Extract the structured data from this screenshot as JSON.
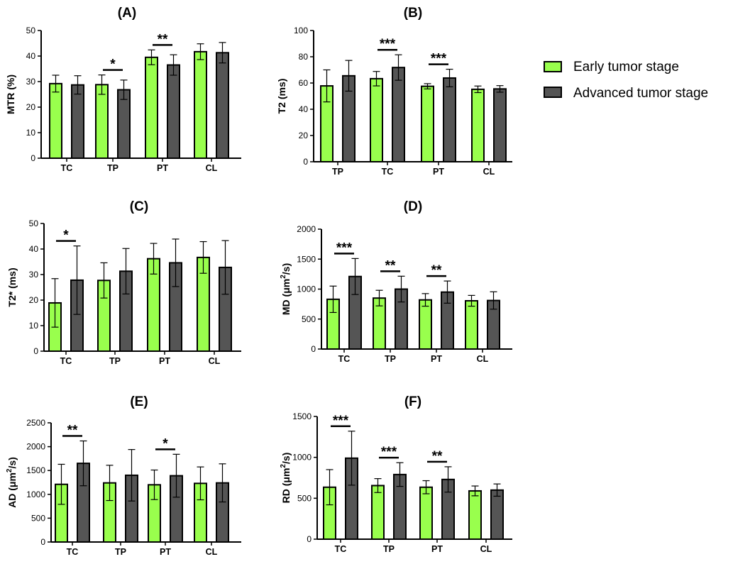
{
  "chart_data": [
    {
      "type": "bar",
      "title": "(A)",
      "ylabel": "MTR (%)",
      "ylabel_sup": "",
      "ylabel_tail": "",
      "ylim": [
        0,
        50
      ],
      "yticks": [
        0,
        10,
        20,
        30,
        40,
        50
      ],
      "categories": [
        "TC",
        "TP",
        "PT",
        "CL"
      ],
      "series": [
        {
          "name": "Early tumor stage",
          "values": [
            29.2,
            28.8,
            39.5,
            41.7
          ],
          "errors": [
            3.3,
            3.8,
            2.9,
            3.1
          ]
        },
        {
          "name": "Advanced tumor stage",
          "values": [
            28.7,
            26.8,
            36.5,
            41.3
          ],
          "errors": [
            3.6,
            3.8,
            4.0,
            4.0
          ]
        }
      ],
      "significance": [
        {
          "category": 1,
          "label": "*"
        },
        {
          "category": 2,
          "label": "**"
        }
      ]
    },
    {
      "type": "bar",
      "title": "(B)",
      "ylabel": "T2 (ms)",
      "ylabel_sup": "",
      "ylabel_tail": "",
      "ylim": [
        0,
        100
      ],
      "yticks": [
        0,
        20,
        40,
        60,
        80,
        100
      ],
      "categories": [
        "TP",
        "TC",
        "PT",
        "CL"
      ],
      "series": [
        {
          "name": "Early tumor stage",
          "values": [
            57.8,
            63.3,
            57.5,
            55.2
          ],
          "errors": [
            12.2,
            5.5,
            2.0,
            2.5
          ]
        },
        {
          "name": "Advanced tumor stage",
          "values": [
            65.5,
            71.8,
            63.8,
            55.5
          ],
          "errors": [
            11.7,
            9.7,
            6.7,
            2.5
          ]
        }
      ],
      "significance": [
        {
          "category": 1,
          "label": "***"
        },
        {
          "category": 2,
          "label": "***"
        }
      ]
    },
    {
      "type": "bar",
      "title": "(C)",
      "ylabel": "T2* (ms)",
      "ylabel_sup": "",
      "ylabel_tail": "",
      "ylim": [
        0,
        50
      ],
      "yticks": [
        0,
        10,
        20,
        30,
        40,
        50
      ],
      "categories": [
        "TC",
        "TP",
        "PT",
        "CL"
      ],
      "series": [
        {
          "name": "Early tumor stage",
          "values": [
            18.9,
            27.7,
            36.2,
            36.7
          ],
          "errors": [
            9.5,
            6.9,
            6.0,
            6.2
          ]
        },
        {
          "name": "Advanced tumor stage",
          "values": [
            27.8,
            31.3,
            34.6,
            32.8
          ],
          "errors": [
            13.4,
            8.9,
            9.3,
            10.5
          ]
        }
      ],
      "significance": [
        {
          "category": 0,
          "label": "*"
        }
      ]
    },
    {
      "type": "bar",
      "title": "(D)",
      "ylabel": "MD (μm",
      "ylabel_sup": "2",
      "ylabel_tail": "/s)",
      "ylim": [
        0,
        2000
      ],
      "yticks": [
        0,
        500,
        1000,
        1500,
        2000
      ],
      "categories": [
        "TC",
        "TP",
        "PT",
        "CL"
      ],
      "series": [
        {
          "name": "Early tumor stage",
          "values": [
            830,
            850,
            820,
            805
          ],
          "errors": [
            220,
            130,
            105,
            90
          ]
        },
        {
          "name": "Advanced tumor stage",
          "values": [
            1210,
            1000,
            950,
            810
          ],
          "errors": [
            300,
            215,
            185,
            145
          ]
        }
      ],
      "significance": [
        {
          "category": 0,
          "label": "***"
        },
        {
          "category": 1,
          "label": "**"
        },
        {
          "category": 2,
          "label": "**"
        }
      ]
    },
    {
      "type": "bar",
      "title": "(E)",
      "ylabel": "AD (μm",
      "ylabel_sup": "2",
      "ylabel_tail": "/s)",
      "ylim": [
        0,
        2500
      ],
      "yticks": [
        0,
        500,
        1000,
        1500,
        2000,
        2500
      ],
      "categories": [
        "TC",
        "TP",
        "PT",
        "CL"
      ],
      "series": [
        {
          "name": "Early tumor stage",
          "values": [
            1210,
            1240,
            1200,
            1230
          ],
          "errors": [
            420,
            370,
            310,
            345
          ]
        },
        {
          "name": "Advanced tumor stage",
          "values": [
            1650,
            1400,
            1390,
            1240
          ],
          "errors": [
            470,
            540,
            450,
            400
          ]
        }
      ],
      "significance": [
        {
          "category": 0,
          "label": "**"
        },
        {
          "category": 2,
          "label": "*"
        }
      ]
    },
    {
      "type": "bar",
      "title": "(F)",
      "ylabel": "RD (μm",
      "ylabel_sup": "2",
      "ylabel_tail": "/s)",
      "ylim": [
        0,
        1500
      ],
      "yticks": [
        0,
        500,
        1000,
        1500
      ],
      "categories": [
        "TC",
        "TP",
        "PT",
        "CL"
      ],
      "series": [
        {
          "name": "Early tumor stage",
          "values": [
            635,
            655,
            635,
            590
          ],
          "errors": [
            215,
            85,
            80,
            60
          ]
        },
        {
          "name": "Advanced tumor stage",
          "values": [
            990,
            790,
            730,
            600
          ],
          "errors": [
            330,
            145,
            155,
            75
          ]
        }
      ],
      "significance": [
        {
          "category": 0,
          "label": "***"
        },
        {
          "category": 1,
          "label": "***"
        },
        {
          "category": 2,
          "label": "**"
        }
      ]
    }
  ],
  "legend": {
    "items": [
      {
        "label": "Early tumor stage",
        "color": "#99ff4d"
      },
      {
        "label": "Advanced tumor stage",
        "color": "#555555"
      }
    ]
  }
}
